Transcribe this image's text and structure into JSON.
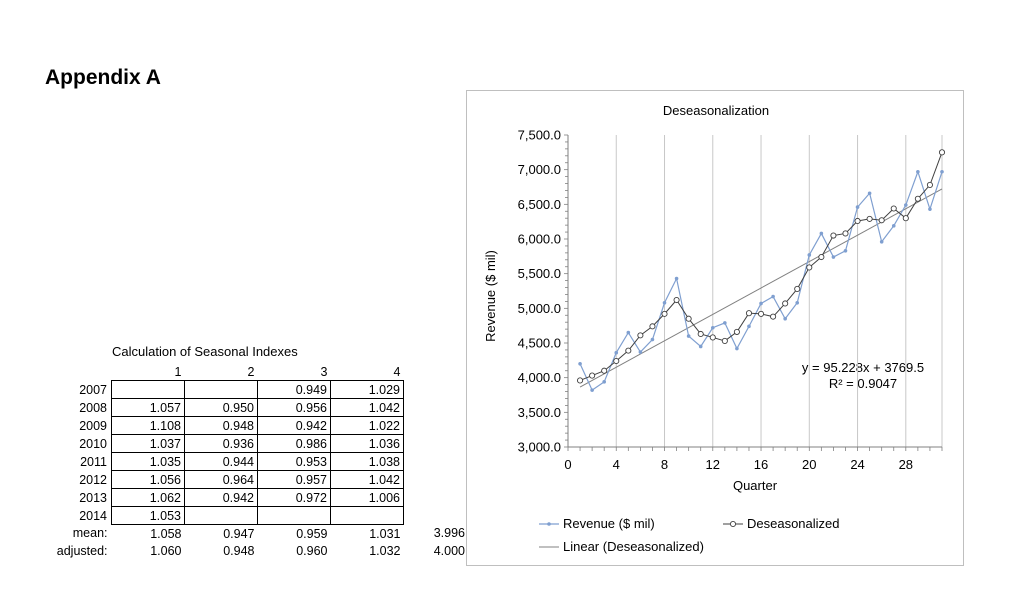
{
  "page": {
    "heading": "Appendix A"
  },
  "table": {
    "title": "Calculation of Seasonal Indexes",
    "headers": [
      "1",
      "2",
      "3",
      "4"
    ],
    "rows": [
      {
        "label": "2007",
        "cells": [
          "",
          "",
          "0.949",
          "1.029"
        ]
      },
      {
        "label": "2008",
        "cells": [
          "1.057",
          "0.950",
          "0.956",
          "1.042"
        ]
      },
      {
        "label": "2009",
        "cells": [
          "1.108",
          "0.948",
          "0.942",
          "1.022"
        ]
      },
      {
        "label": "2010",
        "cells": [
          "1.037",
          "0.936",
          "0.986",
          "1.036"
        ]
      },
      {
        "label": "2011",
        "cells": [
          "1.035",
          "0.944",
          "0.953",
          "1.038"
        ]
      },
      {
        "label": "2012",
        "cells": [
          "1.056",
          "0.964",
          "0.957",
          "1.042"
        ]
      },
      {
        "label": "2013",
        "cells": [
          "1.062",
          "0.942",
          "0.972",
          "1.006"
        ]
      },
      {
        "label": "2014",
        "cells": [
          "1.053",
          "",
          "",
          ""
        ]
      }
    ],
    "mean": {
      "label": "mean:",
      "cells": [
        "1.058",
        "0.947",
        "0.959",
        "1.031"
      ],
      "sum": "3.996"
    },
    "adjusted": {
      "label": "adjusted:",
      "cells": [
        "1.060",
        "0.948",
        "0.960",
        "1.032"
      ],
      "sum": "4.000"
    }
  },
  "chart_data": {
    "type": "line",
    "title": "Deseasonalization",
    "xlabel": "Quarter",
    "ylabel": "Revenue ($ mil)",
    "xlim": [
      0,
      31
    ],
    "ylim": [
      3000,
      7500
    ],
    "xticks": [
      0,
      4,
      8,
      12,
      16,
      20,
      24,
      28
    ],
    "yticks": [
      "3,000.0",
      "3,500.0",
      "4,000.0",
      "4,500.0",
      "5,000.0",
      "5,500.0",
      "6,000.0",
      "6,500.0",
      "7,000.0",
      "7,500.0"
    ],
    "grid": "vertical",
    "x": [
      1,
      2,
      3,
      4,
      5,
      6,
      7,
      8,
      9,
      10,
      11,
      12,
      13,
      14,
      15,
      16,
      17,
      18,
      19,
      20,
      21,
      22,
      23,
      24,
      25,
      26,
      27,
      28,
      29,
      30,
      31
    ],
    "series": [
      {
        "name": "Revenue ($ mil)",
        "color": "#7f9fd0",
        "marker": "dot",
        "values": [
          4200,
          3820,
          3940,
          4360,
          4650,
          4370,
          4550,
          5080,
          5430,
          4600,
          4450,
          4720,
          4790,
          4420,
          4740,
          5070,
          5170,
          4850,
          5080,
          5770,
          6080,
          5740,
          5830,
          6460,
          6660,
          5960,
          6190,
          6490,
          6970,
          6430,
          6970
        ]
      },
      {
        "name": "Deseasonalized",
        "color": "#404040",
        "marker": "circle",
        "values": [
          3960,
          4030,
          4100,
          4240,
          4390,
          4610,
          4740,
          4920,
          5120,
          4850,
          4630,
          4580,
          4530,
          4660,
          4930,
          4920,
          4880,
          5070,
          5280,
          5590,
          5740,
          6050,
          6080,
          6260,
          6290,
          6270,
          6440,
          6300,
          6580,
          6780,
          7250
        ]
      },
      {
        "name": "Linear (Deseasonalized)",
        "color": "#808080",
        "marker": "none",
        "trend": {
          "slope": 95.228,
          "intercept": 3769.5
        }
      }
    ],
    "annotation": {
      "equation": "y = 95.228x + 3769.5",
      "r2": "R² = 0.9047"
    },
    "legend": "bottom"
  }
}
